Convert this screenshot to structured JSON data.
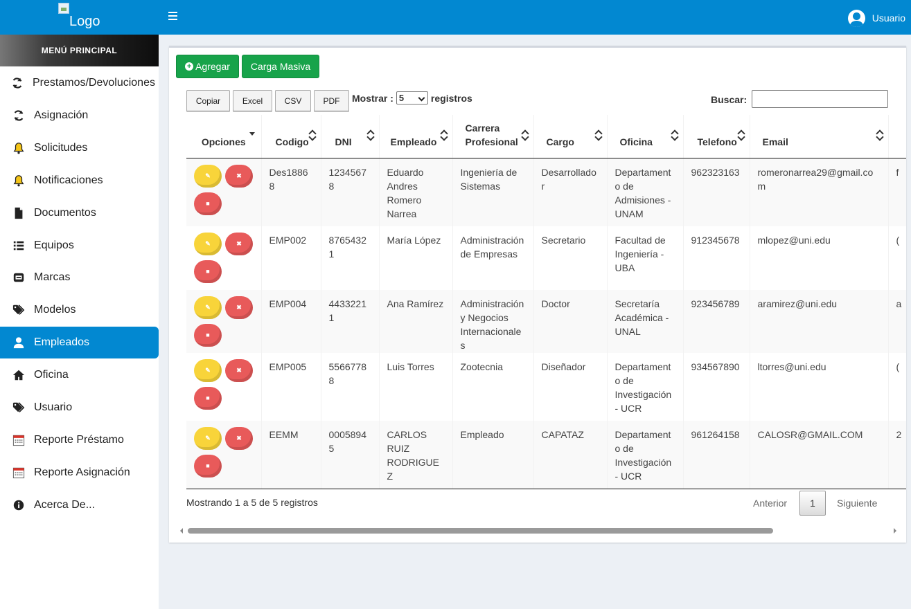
{
  "header": {
    "logo_alt": "Logo",
    "user_label": "Usuario"
  },
  "sidebar": {
    "title": "MENÚ PRINCIPAL",
    "items": [
      {
        "label": "Prestamos/Devoluciones",
        "icon": "refresh-icon"
      },
      {
        "label": "Asignación",
        "icon": "refresh-icon"
      },
      {
        "label": "Solicitudes",
        "icon": "bell-icon"
      },
      {
        "label": "Notificaciones",
        "icon": "bell-icon"
      },
      {
        "label": "Documentos",
        "icon": "file-icon"
      },
      {
        "label": "Equipos",
        "icon": "list-icon"
      },
      {
        "label": "Marcas",
        "icon": "keyboard-icon"
      },
      {
        "label": "Modelos",
        "icon": "tags-icon"
      },
      {
        "label": "Empleados",
        "icon": "user-icon",
        "active": true
      },
      {
        "label": "Oficina",
        "icon": "home-icon"
      },
      {
        "label": "Usuario",
        "icon": "tags-icon"
      },
      {
        "label": "Reporte Préstamo",
        "icon": "calendar-icon"
      },
      {
        "label": "Reporte Asignación",
        "icon": "calendar-icon"
      },
      {
        "label": "Acerca De...",
        "icon": "info-icon"
      }
    ]
  },
  "toolbar": {
    "add_label": "Agregar",
    "bulk_label": "Carga Masiva",
    "export": [
      "Copiar",
      "Excel",
      "CSV",
      "PDF"
    ],
    "show_prefix": "Mostrar :",
    "show_value": "5",
    "show_suffix": "registros",
    "search_label": "Buscar:",
    "search_value": ""
  },
  "table": {
    "columns": [
      "Opciones",
      "Codigo",
      "DNI",
      "Empleado",
      "Carrera Profesional",
      "Cargo",
      "Oficina",
      "Telefono",
      "Email"
    ],
    "rows": [
      [
        "Des18868",
        "12345678",
        "Eduardo Andres Romero Narrea",
        "Ingeniería de Sistemas",
        "Desarrollador",
        "Departamento de Admisiones - UNAM",
        "962323163",
        "romeronarrea29@gmail.com",
        "f"
      ],
      [
        "EMP002",
        "87654321",
        "María López",
        "Administración de Empresas",
        "Secretario",
        "Facultad de Ingeniería - UBA",
        "912345678",
        "mlopez@uni.edu",
        "("
      ],
      [
        "EMP004",
        "44332211",
        "Ana Ramírez",
        "Administración y Negocios Internacionales",
        "Doctor",
        "Secretaría Académica - UNAL",
        "923456789",
        "aramirez@uni.edu",
        "a"
      ],
      [
        "EMP005",
        "55667788",
        "Luis Torres",
        "Zootecnia",
        "Diseñador",
        "Departamento de Investigación - UCR",
        "934567890",
        "ltorres@uni.edu",
        "("
      ],
      [
        "EEMM",
        "00058945",
        "CARLOS RUIZ RODRIGUEZ",
        "Empleado",
        "CAPATAZ",
        "Departamento de Investigación - UCR",
        "961264158",
        "CALOSR@GMAIL.COM",
        "2"
      ]
    ]
  },
  "footer": {
    "info": "Mostrando 1 a 5 de 5 registros",
    "prev": "Anterior",
    "page": "1",
    "next": "Siguiente"
  }
}
